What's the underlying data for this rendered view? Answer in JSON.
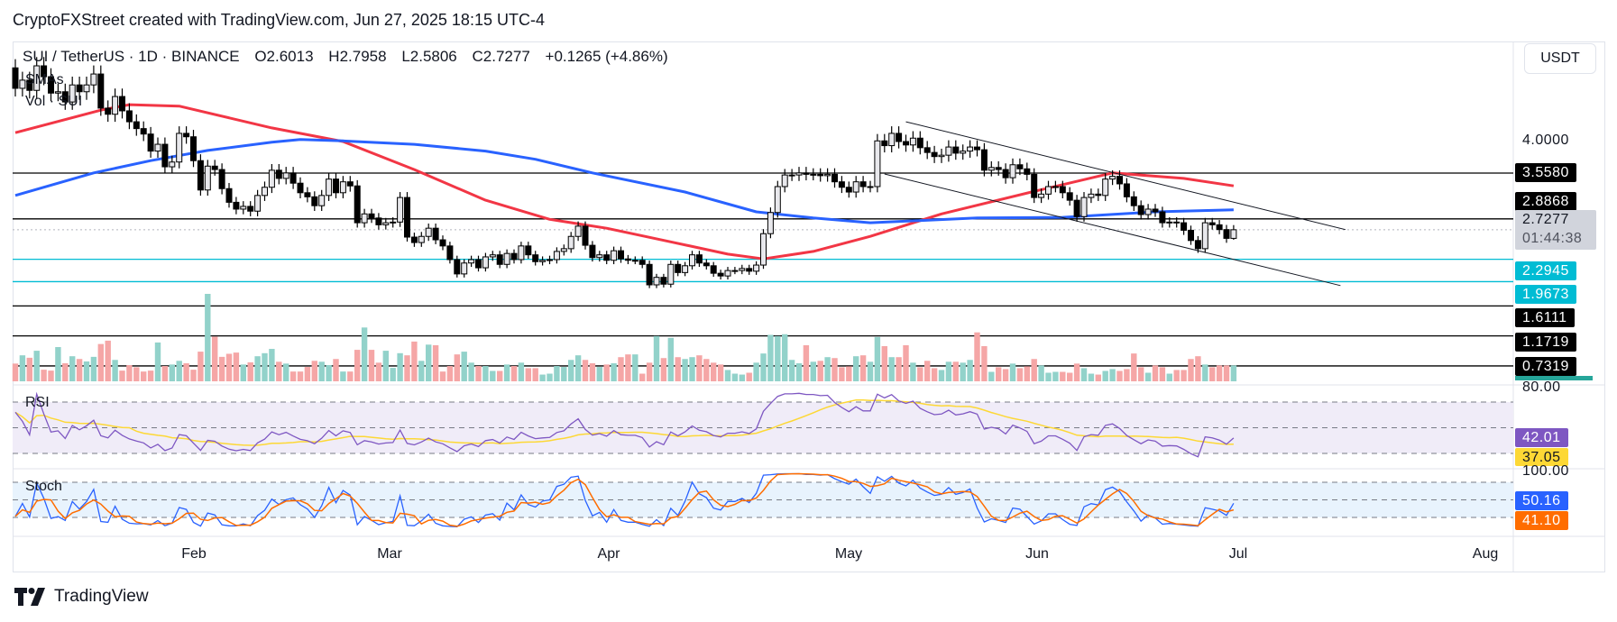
{
  "header": {
    "attribution": "CryptoFXStreet created with TradingView.com, Jun 27, 2025 18:15 UTC-4"
  },
  "legend": {
    "symbol": "SUI / TetherUS · 1D · BINANCE",
    "open": "O2.6013",
    "high": "H2.7958",
    "low": "L2.5806",
    "close": "C2.7277",
    "change": "+0.1265 (+4.86%)",
    "sma_label": "SMAs",
    "vol_label": "Vol · SUI"
  },
  "currency_button": "USDT",
  "price_axis": {
    "tick": "4.0000",
    "current_price": "2.7277",
    "countdown": "01:44:38",
    "levels": [
      {
        "value": "3.5580",
        "color": "#000000"
      },
      {
        "value": "2.8868",
        "color": "#000000"
      },
      {
        "value": "2.2945",
        "color": "#00bcd4"
      },
      {
        "value": "1.9673",
        "color": "#00bcd4"
      },
      {
        "value": "1.6111",
        "color": "#000000"
      },
      {
        "value": "1.1719",
        "color": "#000000"
      },
      {
        "value": "0.7319",
        "color": "#000000"
      }
    ]
  },
  "rsi": {
    "label": "RSI",
    "axis_top": "80.00",
    "value": "42.01",
    "signal": "37.05",
    "color": "#7e57c2",
    "signal_color": "#fdd835"
  },
  "stoch": {
    "label": "Stoch",
    "axis_top": "100.00",
    "k": "50.16",
    "d": "41.10",
    "k_color": "#2962ff",
    "d_color": "#ff6d00"
  },
  "time_axis": [
    "Feb",
    "Mar",
    "Apr",
    "May",
    "Jun",
    "Jul",
    "Aug"
  ],
  "branding": "TradingView",
  "chart_data": {
    "type": "candlestick",
    "symbol": "SUI/USDT",
    "interval": "1D",
    "first_date": "Jan 7",
    "last_date": "Jun 27",
    "first_open": 5.1,
    "last_candle": {
      "open": 2.6013,
      "high": 2.7958,
      "low": 2.5806,
      "close": 2.7277
    },
    "closes": [
      4.8,
      4.92,
      4.77,
      5.13,
      4.97,
      4.73,
      4.75,
      4.6,
      4.85,
      4.75,
      4.85,
      5.01,
      4.51,
      4.42,
      4.68,
      4.47,
      4.31,
      4.21,
      4.13,
      3.88,
      3.98,
      3.65,
      3.72,
      4.14,
      4.09,
      3.74,
      3.31,
      3.66,
      3.61,
      3.33,
      3.13,
      3.03,
      3.07,
      3.0,
      3.23,
      3.35,
      3.6,
      3.48,
      3.56,
      3.41,
      3.27,
      3.21,
      3.08,
      3.23,
      3.47,
      3.27,
      3.43,
      3.37,
      2.83,
      2.96,
      2.9,
      2.8,
      2.83,
      2.84,
      3.2,
      2.62,
      2.54,
      2.63,
      2.75,
      2.58,
      2.49,
      2.29,
      2.08,
      2.24,
      2.29,
      2.17,
      2.33,
      2.36,
      2.22,
      2.38,
      2.29,
      2.49,
      2.36,
      2.26,
      2.28,
      2.29,
      2.41,
      2.45,
      2.63,
      2.78,
      2.5,
      2.32,
      2.36,
      2.28,
      2.42,
      2.3,
      2.28,
      2.28,
      2.22,
      1.92,
      2.03,
      1.93,
      2.22,
      2.1,
      2.2,
      2.36,
      2.24,
      2.2,
      2.09,
      2.05,
      2.13,
      2.13,
      2.16,
      2.12,
      2.21,
      2.67,
      2.98,
      3.36,
      3.53,
      3.53,
      3.56,
      3.54,
      3.54,
      3.52,
      3.54,
      3.43,
      3.35,
      3.28,
      3.43,
      3.36,
      3.36,
      4.03,
      3.96,
      4.14,
      4.02,
      3.97,
      4.07,
      3.93,
      3.86,
      3.8,
      3.82,
      3.94,
      3.85,
      3.88,
      3.94,
      3.9,
      3.6,
      3.64,
      3.61,
      3.49,
      3.68,
      3.62,
      3.54,
      3.2,
      3.25,
      3.36,
      3.36,
      3.27,
      3.16,
      2.92,
      3.2,
      3.25,
      3.23,
      3.47,
      3.51,
      3.4,
      3.21,
      3.08,
      2.95,
      3.03,
      2.99,
      2.83,
      2.84,
      2.83,
      2.72,
      2.57,
      2.45,
      2.83,
      2.8,
      2.73,
      2.6013,
      2.7277
    ],
    "volume_relative": [
      58,
      85,
      77,
      100,
      38,
      35,
      112,
      59,
      82,
      73,
      65,
      80,
      122,
      133,
      70,
      35,
      53,
      46,
      32,
      35,
      127,
      50,
      55,
      67,
      59,
      38,
      97,
      286,
      146,
      80,
      90,
      94,
      55,
      62,
      82,
      92,
      106,
      64,
      58,
      32,
      32,
      47,
      67,
      64,
      53,
      73,
      32,
      32,
      103,
      176,
      103,
      61,
      100,
      44,
      92,
      85,
      130,
      67,
      120,
      118,
      32,
      50,
      88,
      97,
      61,
      50,
      50,
      34,
      34,
      55,
      50,
      61,
      43,
      43,
      22,
      25,
      50,
      47,
      70,
      85,
      70,
      59,
      47,
      55,
      59,
      79,
      88,
      88,
      25,
      61,
      148,
      76,
      142,
      79,
      73,
      79,
      85,
      73,
      61,
      55,
      37,
      25,
      22,
      28,
      61,
      91,
      152,
      148,
      154,
      70,
      59,
      118,
      64,
      67,
      79,
      76,
      46,
      49,
      82,
      85,
      64,
      145,
      115,
      79,
      79,
      118,
      61,
      46,
      67,
      43,
      37,
      64,
      64,
      61,
      70,
      160,
      115,
      31,
      46,
      40,
      58,
      43,
      49,
      73,
      52,
      28,
      31,
      31,
      28,
      58,
      43,
      25,
      22,
      34,
      40,
      34,
      40,
      91,
      46,
      28,
      52,
      46,
      25,
      37,
      37,
      73,
      82,
      55,
      46,
      52,
      52,
      52
    ],
    "sma_red": [
      [
        0,
        4.15
      ],
      [
        12,
        4.48
      ],
      [
        16,
        4.56
      ],
      [
        23,
        4.54
      ],
      [
        36,
        4.22
      ],
      [
        46,
        4.02
      ],
      [
        56,
        3.61
      ],
      [
        66,
        3.16
      ],
      [
        75,
        2.88
      ],
      [
        83,
        2.75
      ],
      [
        92,
        2.55
      ],
      [
        100,
        2.37
      ],
      [
        105,
        2.3
      ],
      [
        112,
        2.41
      ],
      [
        120,
        2.63
      ],
      [
        130,
        2.96
      ],
      [
        143,
        3.29
      ],
      [
        154,
        3.56
      ],
      [
        164,
        3.48
      ],
      [
        171,
        3.37
      ]
    ],
    "sma_blue": [
      [
        0,
        3.23
      ],
      [
        11,
        3.56
      ],
      [
        19,
        3.74
      ],
      [
        27,
        3.89
      ],
      [
        36,
        4.01
      ],
      [
        40,
        4.05
      ],
      [
        46,
        4.03
      ],
      [
        56,
        3.98
      ],
      [
        66,
        3.88
      ],
      [
        73,
        3.76
      ],
      [
        81,
        3.56
      ],
      [
        94,
        3.28
      ],
      [
        104,
        2.99
      ],
      [
        112,
        2.9
      ],
      [
        120,
        2.83
      ],
      [
        135,
        2.9
      ],
      [
        147,
        2.91
      ],
      [
        160,
        2.99
      ],
      [
        171,
        3.02
      ]
    ],
    "channel_upper": [
      [
        125,
        4.31
      ],
      [
        186.7,
        2.73
      ]
    ],
    "channel_lower": [
      [
        122,
        3.545
      ],
      [
        186,
        1.91
      ]
    ],
    "horizontal_levels": [
      3.558,
      2.8868,
      2.2945,
      1.9673,
      1.6111,
      1.1719,
      0.7319
    ],
    "rsi_levels": [
      70,
      50,
      30
    ],
    "stoch_levels": [
      80,
      50,
      20
    ],
    "colors": {
      "up_body": "#e8e8ec",
      "down_body": "#000000",
      "vol_up": "#92d2ca",
      "vol_down": "#f5a6a6",
      "sma_red": "#f23645",
      "sma_blue": "#2962ff",
      "channel": "#131722"
    }
  }
}
